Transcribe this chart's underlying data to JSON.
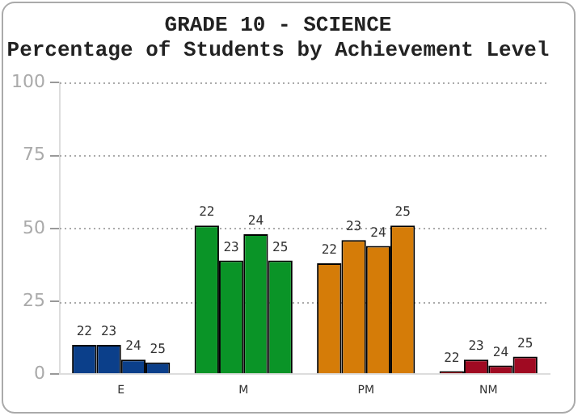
{
  "chart_data": {
    "type": "bar",
    "title": "GRADE 10 - SCIENCE",
    "subtitle": "Percentage of Students by Achievement Level",
    "categories": [
      "E",
      "M",
      "PM",
      "NM"
    ],
    "series": [
      {
        "name": "22",
        "colors": [
          "#0b3f8a",
          "#0a9427",
          "#d57c08",
          "#a00a22"
        ],
        "values": [
          10,
          51,
          38,
          1
        ]
      },
      {
        "name": "23",
        "colors": [
          "#0b3f8a",
          "#0a9427",
          "#d57c08",
          "#a00a22"
        ],
        "values": [
          10,
          39,
          46,
          5
        ]
      },
      {
        "name": "24",
        "colors": [
          "#0b3f8a",
          "#0a9427",
          "#d57c08",
          "#a00a22"
        ],
        "values": [
          5,
          48,
          44,
          3
        ]
      },
      {
        "name": "25",
        "colors": [
          "#0b3f8a",
          "#0a9427",
          "#d57c08",
          "#a00a22"
        ],
        "values": [
          4,
          39,
          51,
          6
        ]
      }
    ],
    "ylim": [
      0,
      100
    ],
    "yticks": [
      0,
      25,
      50,
      75,
      100
    ],
    "grid": "y",
    "legend": false
  }
}
